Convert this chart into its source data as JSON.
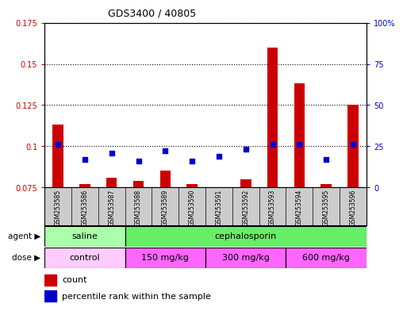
{
  "title": "GDS3400 / 40805",
  "samples": [
    "GSM253585",
    "GSM253586",
    "GSM253587",
    "GSM253588",
    "GSM253589",
    "GSM253590",
    "GSM253591",
    "GSM253592",
    "GSM253593",
    "GSM253594",
    "GSM253595",
    "GSM253596"
  ],
  "count_values": [
    0.113,
    0.077,
    0.081,
    0.079,
    0.085,
    0.077,
    0.074,
    0.08,
    0.16,
    0.138,
    0.077,
    0.125
  ],
  "percentile_values": [
    26,
    17,
    21,
    16,
    22,
    16,
    19,
    23,
    26,
    26,
    17,
    26
  ],
  "ylim_left": [
    0.075,
    0.175
  ],
  "ylim_right": [
    0,
    100
  ],
  "yticks_left": [
    0.075,
    0.1,
    0.125,
    0.15,
    0.175
  ],
  "yticks_right": [
    0,
    25,
    50,
    75,
    100
  ],
  "ytick_labels_left": [
    "0.075",
    "0.1",
    "0.125",
    "0.15",
    "0.175"
  ],
  "ytick_labels_right": [
    "0",
    "25",
    "50",
    "75",
    "100%"
  ],
  "bar_color": "#cc0000",
  "dot_color": "#0000cc",
  "bar_bottom": 0.075,
  "agent_groups": [
    {
      "label": "saline",
      "start": 0,
      "end": 3,
      "color": "#aaffaa"
    },
    {
      "label": "cephalosporin",
      "start": 3,
      "end": 12,
      "color": "#66ee66"
    }
  ],
  "dose_groups": [
    {
      "label": "control",
      "start": 0,
      "end": 3,
      "color": "#ffccff"
    },
    {
      "label": "150 mg/kg",
      "start": 3,
      "end": 6,
      "color": "#ff66ff"
    },
    {
      "label": "300 mg/kg",
      "start": 6,
      "end": 9,
      "color": "#ff66ff"
    },
    {
      "label": "600 mg/kg",
      "start": 9,
      "end": 12,
      "color": "#ff66ff"
    }
  ],
  "legend_count_label": "count",
  "legend_pct_label": "percentile rank within the sample",
  "agent_label": "agent",
  "dose_label": "dose",
  "title_color": "#000000",
  "left_axis_color": "#cc0000",
  "right_axis_color": "#0000cc",
  "xtick_bg_color": "#cccccc"
}
